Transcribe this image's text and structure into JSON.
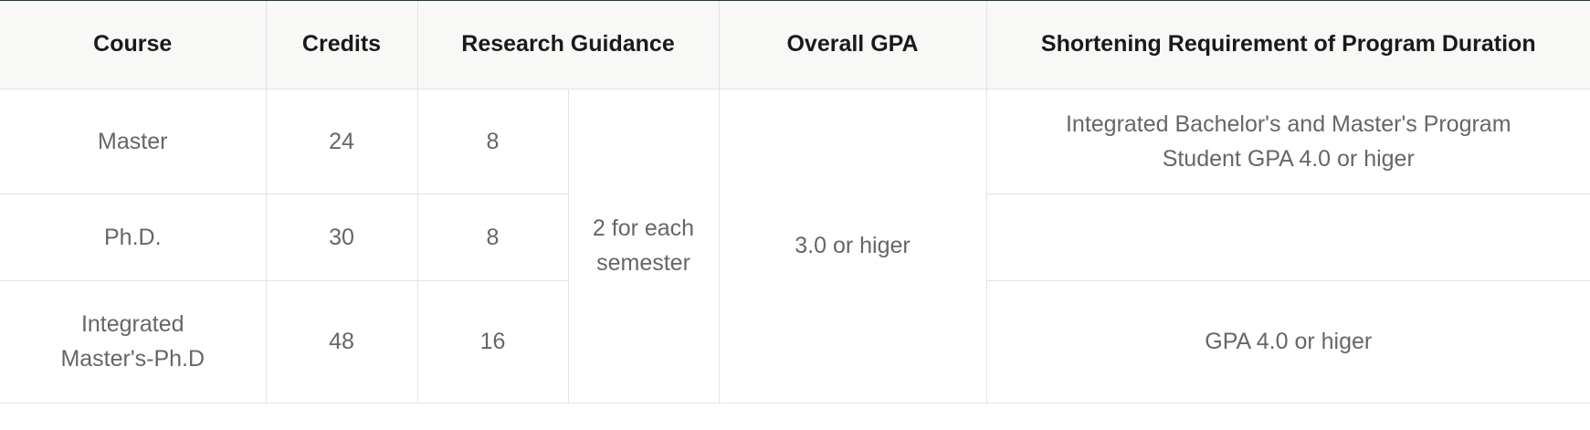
{
  "table": {
    "headers": {
      "course": "Course",
      "credits": "Credits",
      "research_guidance": "Research Guidance",
      "overall_gpa": "Overall GPA",
      "shortening_requirement": "Shortening Requirement of Program Duration"
    },
    "rows": [
      {
        "course": "Master",
        "credits": "24",
        "research_guidance_credits": "8",
        "shortening_requirement": "Integrated Bachelor's and Master's Program Student GPA 4.0 or higer"
      },
      {
        "course": "Ph.D.",
        "credits": "30",
        "research_guidance_credits": "8",
        "shortening_requirement": ""
      },
      {
        "course": "Integrated Master's-Ph.D",
        "credits": "48",
        "research_guidance_credits": "16",
        "shortening_requirement": "GPA 4.0 or higer"
      }
    ],
    "research_guidance_per_semester": "2 for each semester",
    "overall_gpa_value": "3.0 or higer"
  }
}
